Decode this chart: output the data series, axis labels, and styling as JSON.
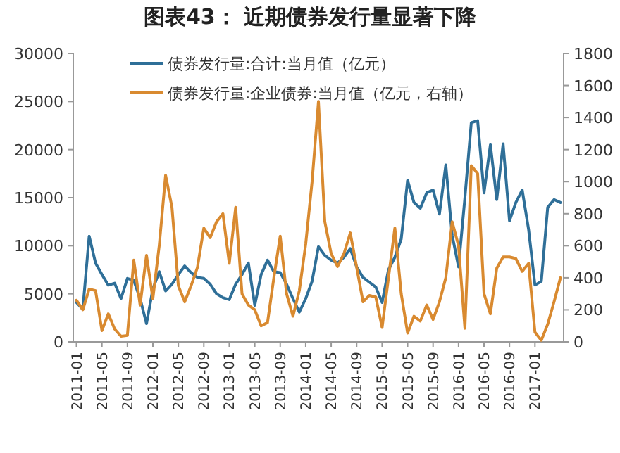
{
  "chart_data": {
    "type": "line",
    "title": "图表43：      近期债券发行量显著下降",
    "categories": [
      "2011-01",
      null,
      null,
      null,
      "2011-05",
      null,
      null,
      null,
      "2011-09",
      null,
      null,
      null,
      "2012-01",
      null,
      null,
      null,
      "2012-05",
      null,
      null,
      null,
      "2012-09",
      null,
      null,
      null,
      "2013-01",
      null,
      null,
      null,
      "2013-05",
      null,
      null,
      null,
      "2013-09",
      null,
      null,
      null,
      "2014-01",
      null,
      null,
      null,
      "2014-05",
      null,
      null,
      null,
      "2014-09",
      null,
      null,
      null,
      "2015-01",
      null,
      null,
      null,
      "2015-05",
      null,
      null,
      null,
      "2015-09",
      null,
      null,
      null,
      "2016-01",
      null,
      null,
      null,
      "2016-05",
      null,
      null,
      null,
      "2016-09",
      null,
      null,
      null,
      "2017-01",
      null,
      null,
      null,
      null
    ],
    "series": [
      {
        "name": "债券发行量:合计:当月值（亿元）",
        "color": "#2f6f98",
        "values": [
          4100,
          3400,
          11000,
          8200,
          7000,
          5900,
          6100,
          4500,
          6600,
          6400,
          4500,
          1900,
          5500,
          7300,
          5300,
          6000,
          7000,
          7900,
          7200,
          6700,
          6600,
          6000,
          5000,
          4600,
          4400,
          6000,
          7000,
          8200,
          3800,
          7000,
          8500,
          7300,
          7200,
          6000,
          4500,
          3100,
          4500,
          6300,
          9900,
          9000,
          8500,
          8200,
          8800,
          9700,
          7800,
          6700,
          6200,
          5700,
          4100,
          7500,
          8800,
          10700,
          16800,
          14500,
          13900,
          15500,
          15800,
          13300,
          18400,
          11100,
          7800,
          15000,
          22800,
          23000,
          15500,
          20500,
          14800,
          20600,
          12600,
          14500,
          15800,
          11700,
          5900,
          6300,
          14000,
          14800,
          14500
        ]
      },
      {
        "name": "债券发行量:企业债券:当月值（亿元，右轴）",
        "color": "#d98a30",
        "axis": "y2",
        "values": [
          260,
          200,
          330,
          320,
          70,
          175,
          80,
          35,
          40,
          510,
          230,
          540,
          270,
          600,
          1040,
          840,
          350,
          250,
          350,
          465,
          710,
          650,
          750,
          800,
          490,
          840,
          300,
          230,
          200,
          100,
          120,
          400,
          660,
          300,
          160,
          320,
          610,
          1000,
          1500,
          750,
          550,
          470,
          550,
          680,
          465,
          250,
          290,
          280,
          90,
          400,
          710,
          300,
          55,
          160,
          130,
          230,
          140,
          250,
          400,
          750,
          600,
          85,
          1100,
          1050,
          300,
          175,
          460,
          530,
          530,
          520,
          440,
          490,
          60,
          10,
          110,
          250,
          400
        ]
      }
    ],
    "ylim": [
      0,
      30000
    ],
    "yticks": [
      0,
      5000,
      10000,
      15000,
      20000,
      25000,
      30000
    ],
    "y2lim": [
      0,
      1800
    ],
    "y2ticks": [
      0,
      200,
      400,
      600,
      800,
      1000,
      1200,
      1400,
      1600,
      1800
    ],
    "legend": "top left"
  }
}
